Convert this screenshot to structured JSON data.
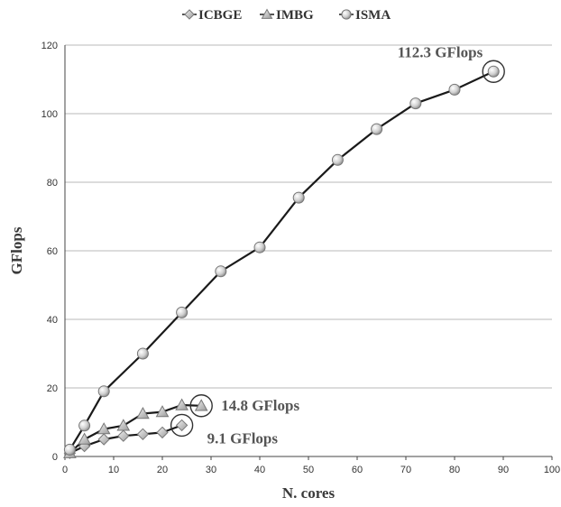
{
  "chart_data": {
    "type": "line",
    "xlabel": "N. cores",
    "ylabel": "GFlops",
    "xlim": [
      0,
      100
    ],
    "ylim": [
      0,
      120
    ],
    "xticks": [
      0,
      10,
      20,
      30,
      40,
      50,
      60,
      70,
      80,
      90,
      100
    ],
    "yticks": [
      0,
      20,
      40,
      60,
      80,
      100,
      120
    ],
    "grid": "horizontal",
    "legend_position": "top",
    "series": [
      {
        "name": "ICBGE",
        "marker": "diamond",
        "x": [
          1,
          4,
          8,
          12,
          16,
          20,
          24
        ],
        "y": [
          1.0,
          3.0,
          5.0,
          6.0,
          6.5,
          7.0,
          9.1
        ]
      },
      {
        "name": "IMBG",
        "marker": "triangle",
        "x": [
          1,
          4,
          8,
          12,
          16,
          20,
          24,
          28
        ],
        "y": [
          1.0,
          5.0,
          8.0,
          9.0,
          12.5,
          13.0,
          15.0,
          14.8
        ]
      },
      {
        "name": "ISMA",
        "marker": "circle",
        "x": [
          1,
          4,
          8,
          16,
          24,
          32,
          40,
          48,
          56,
          64,
          72,
          80,
          88
        ],
        "y": [
          2.0,
          9.0,
          19.0,
          30.0,
          42.0,
          54.0,
          61.0,
          75.5,
          86.5,
          95.5,
          103.0,
          107.0,
          112.3
        ]
      }
    ],
    "annotations": [
      {
        "text": "112.3 GFlops",
        "x": 88,
        "y": 112.3
      },
      {
        "text": "14.8 GFlops",
        "x": 28,
        "y": 14.8
      },
      {
        "text": "9.1 GFlops",
        "x": 24,
        "y": 9.1
      }
    ]
  }
}
